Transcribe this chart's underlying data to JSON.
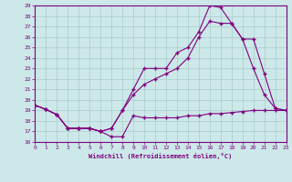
{
  "xlabel": "Windchill (Refroidissement éolien,°C)",
  "xlim": [
    0,
    23
  ],
  "ylim": [
    16,
    29
  ],
  "xticks": [
    0,
    1,
    2,
    3,
    4,
    5,
    6,
    7,
    8,
    9,
    10,
    11,
    12,
    13,
    14,
    15,
    16,
    17,
    18,
    19,
    20,
    21,
    22,
    23
  ],
  "yticks": [
    16,
    17,
    18,
    19,
    20,
    21,
    22,
    23,
    24,
    25,
    26,
    27,
    28,
    29
  ],
  "bg_color": "#cce8e8",
  "line_color": "#800080",
  "grid_color": "#aacccc",
  "line1_x": [
    0,
    1,
    2,
    3,
    4,
    5,
    6,
    7,
    8,
    9,
    10,
    11,
    12,
    13,
    14,
    15,
    16,
    17,
    18,
    19,
    20,
    21,
    22,
    23
  ],
  "line1_y": [
    19.5,
    19.1,
    18.6,
    17.3,
    17.3,
    17.3,
    17.0,
    16.5,
    16.5,
    18.5,
    18.3,
    18.3,
    18.3,
    18.3,
    18.5,
    18.5,
    18.7,
    18.7,
    18.8,
    18.9,
    19.0,
    19.0,
    19.0,
    19.0
  ],
  "line2_x": [
    0,
    1,
    2,
    3,
    4,
    5,
    6,
    7,
    8,
    9,
    10,
    11,
    12,
    13,
    14,
    15,
    16,
    17,
    18,
    19,
    20,
    21,
    22,
    23
  ],
  "line2_y": [
    19.5,
    19.1,
    18.6,
    17.3,
    17.3,
    17.3,
    17.0,
    17.3,
    19.0,
    21.0,
    23.0,
    23.0,
    23.0,
    24.5,
    25.0,
    26.5,
    29.0,
    28.8,
    27.3,
    25.8,
    23.0,
    20.5,
    19.2,
    19.0
  ],
  "line3_x": [
    0,
    1,
    2,
    3,
    4,
    5,
    6,
    7,
    8,
    9,
    10,
    11,
    12,
    13,
    14,
    15,
    16,
    17,
    18,
    19,
    20,
    21,
    22,
    23
  ],
  "line3_y": [
    19.5,
    19.1,
    18.6,
    17.3,
    17.3,
    17.3,
    17.0,
    17.3,
    19.0,
    20.5,
    21.5,
    22.0,
    22.5,
    23.0,
    24.0,
    26.0,
    27.5,
    27.3,
    27.3,
    25.8,
    25.8,
    22.5,
    19.2,
    19.0
  ]
}
